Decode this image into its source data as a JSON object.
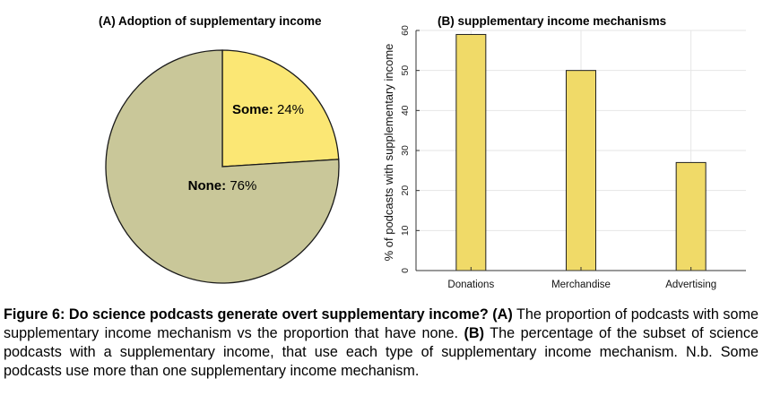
{
  "chart_data": [
    {
      "type": "pie",
      "title": "(A) Adoption of supplementary income",
      "slices": [
        {
          "name": "Some",
          "value": 24,
          "label": "24%",
          "color": "#fbe774"
        },
        {
          "name": "None",
          "value": 76,
          "label": "76%",
          "color": "#c9c799"
        }
      ],
      "edge_color": "#1a1a1a"
    },
    {
      "type": "bar",
      "title": "(B) supplementary income mechanisms",
      "categories": [
        "Donations",
        "Merchandise",
        "Advertising"
      ],
      "values": [
        59,
        50,
        27
      ],
      "ylabel": "% of podcasts with supplementary income",
      "ylim": [
        0,
        60
      ],
      "yticks": [
        "0",
        "10",
        "20",
        "30",
        "40",
        "50",
        "60"
      ],
      "bar_color": "#f0da68",
      "grid": true
    }
  ],
  "caption": {
    "label": "Figure 6: Do science podcasts generate overt supplementary income?",
    "a_marker": "(A)",
    "a_text": "The proportion of podcasts with some supplementary income mechanism vs the proportion that have none.",
    "b_marker": "(B)",
    "b_text": "The percentage of the subset of science podcasts with a supplementary income, that use each type of supplementary income mechanism. N.b. Some podcasts use more than one supplementary income mechanism."
  }
}
